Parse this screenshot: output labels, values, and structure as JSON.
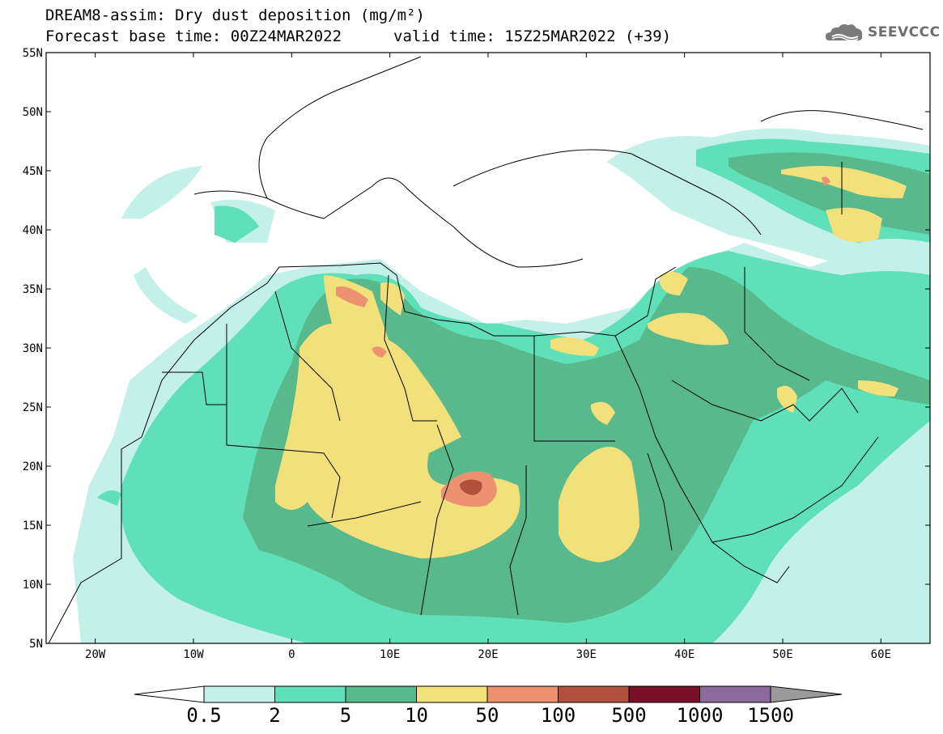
{
  "title": {
    "line1": "DREAM8-assim: Dry dust deposition (mg/m²)",
    "line2": "Forecast base time: 00Z24MAR2022",
    "valid": "valid time: 15Z25MAR2022 (+39)"
  },
  "logo": {
    "text": "SEEVCCC",
    "icon": "cloud-logo-icon"
  },
  "axes": {
    "lat_labels": [
      "55N",
      "50N",
      "45N",
      "40N",
      "35N",
      "30N",
      "25N",
      "20N",
      "15N",
      "10N",
      "5N"
    ],
    "lat_values": [
      55,
      50,
      45,
      40,
      35,
      30,
      25,
      20,
      15,
      10,
      5
    ],
    "lon_labels": [
      "20W",
      "10W",
      "0",
      "10E",
      "20E",
      "30E",
      "40E",
      "50E",
      "60E"
    ],
    "lon_values": [
      -20,
      -10,
      0,
      10,
      20,
      30,
      40,
      50,
      60
    ],
    "lon_range": [
      -25,
      65
    ],
    "lat_range": [
      5,
      55
    ]
  },
  "colorbar": {
    "labels": [
      "0.5",
      "2",
      "5",
      "10",
      "50",
      "100",
      "500",
      "1000",
      "1500"
    ],
    "colors": [
      "#c4f0ea",
      "#5fe0b8",
      "#58b98c",
      "#f2e07a",
      "#ec9270",
      "#b2503e",
      "#7a0f2a",
      "#8c6a9c"
    ],
    "under_color": "#ffffff",
    "over_color": "#9a9a9a"
  }
}
